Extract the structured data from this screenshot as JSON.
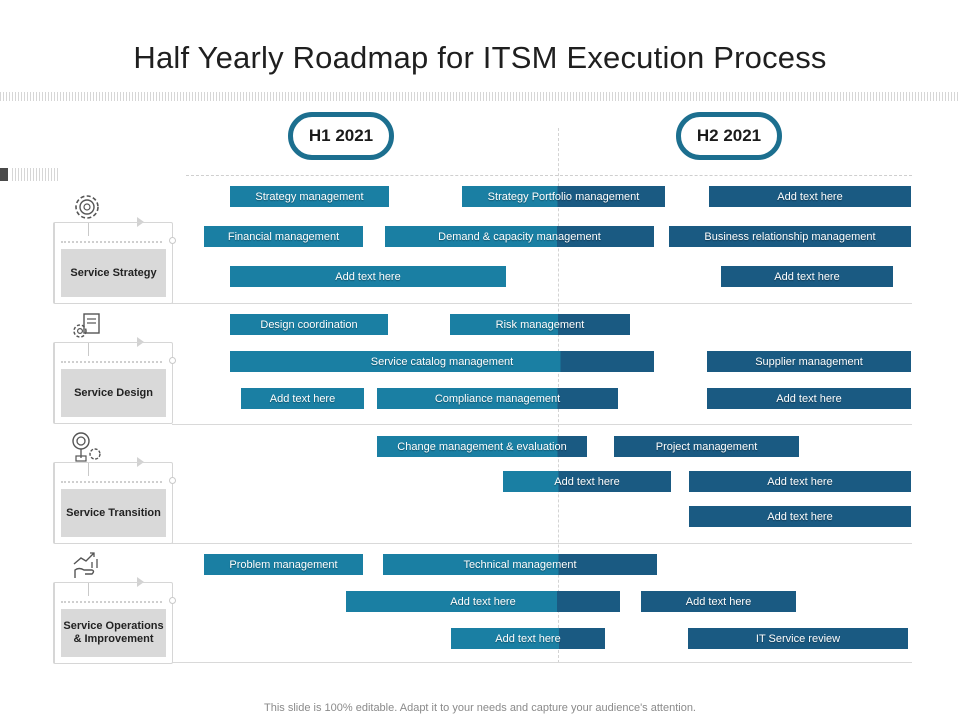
{
  "title": "Half Yearly Roadmap for ITSM Execution Process",
  "periods": {
    "h1": "H1 2021",
    "h2": "H2 2021"
  },
  "icons": [
    "gear-icon",
    "gears-document-icon",
    "target-icon",
    "hand-growth-chart-icon"
  ],
  "colors": {
    "bar_light": "#1a7fa3",
    "bar_dark": "#1a5a82",
    "ring": "#1c6f8f",
    "category_fill": "#d9d9d9"
  },
  "sections": [
    {
      "category": "Service Strategy",
      "tasks": [
        "Strategy management",
        "Strategy Portfolio management",
        "Add text here",
        "Financial management",
        "Demand & capacity management",
        "Business relationship management",
        "Add text here",
        "Add text here"
      ]
    },
    {
      "category": "Service Design",
      "tasks": [
        "Design coordination",
        "Risk management",
        "Service catalog management",
        "Supplier management",
        "Add text here",
        "Compliance management",
        "Add text here"
      ]
    },
    {
      "category": "Service Transition",
      "tasks": [
        "Change management & evaluation",
        "Project management",
        "Add text here",
        "Add text here",
        "Add text here"
      ]
    },
    {
      "category": "Service Operations & Improvement",
      "tasks": [
        "Problem management",
        "Technical management",
        "Add text here",
        "Add text here",
        "Add text here",
        "IT  Service review"
      ]
    }
  ],
  "footnote": "This slide is 100% editable. Adapt it to your needs and capture your audience's attention."
}
